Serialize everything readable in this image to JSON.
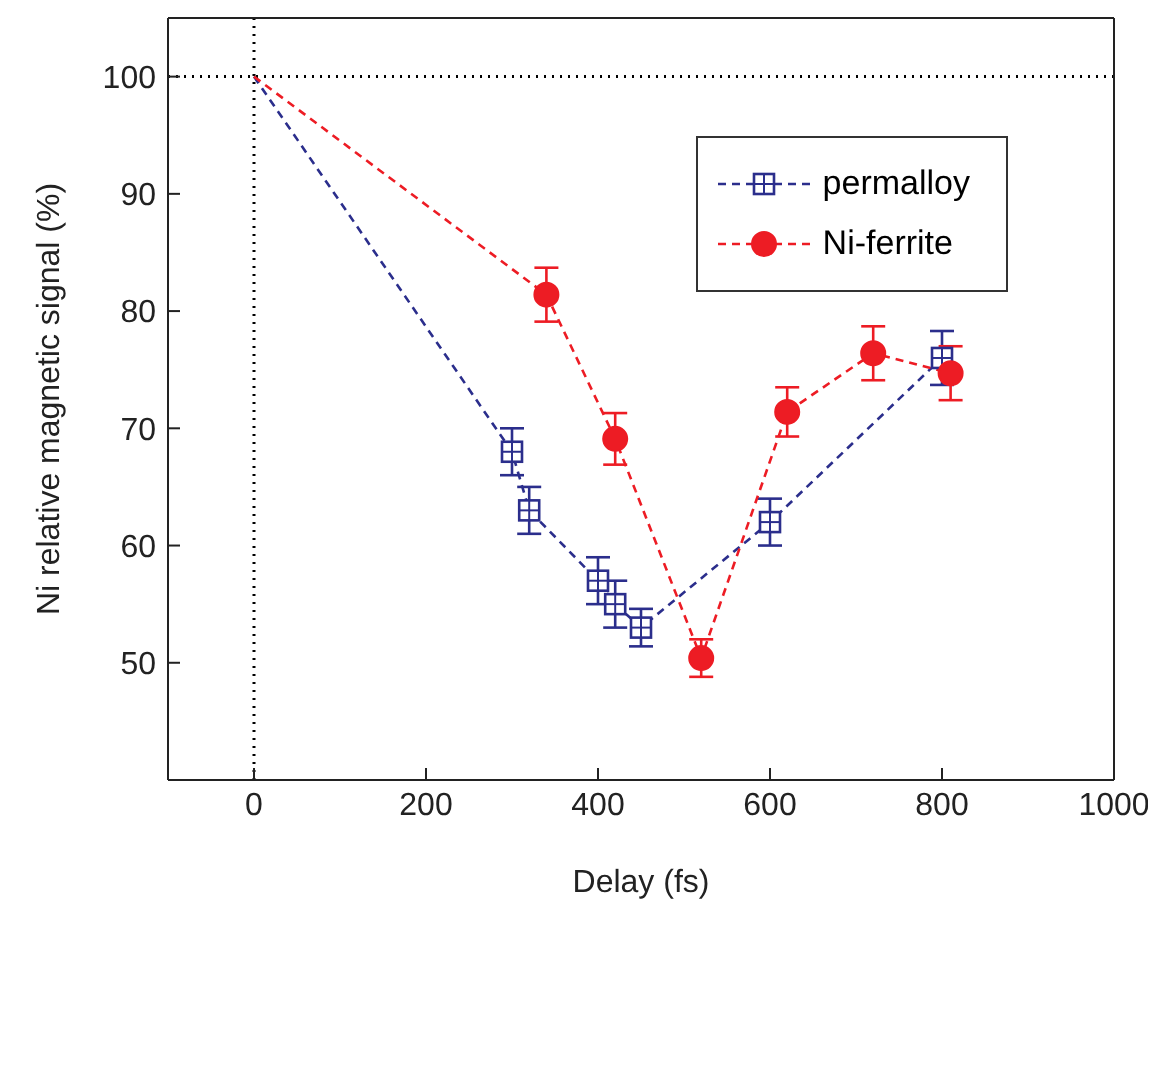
{
  "chart_data": {
    "type": "line",
    "xlabel": "Delay (fs)",
    "ylabel": "Ni relative magnetic signal (%)",
    "xlim": [
      -100,
      1000
    ],
    "xticks": [
      0,
      200,
      400,
      600,
      800,
      1000
    ],
    "ylim": [
      40,
      105
    ],
    "yticks": [
      50,
      60,
      70,
      80,
      90,
      100
    ],
    "legend": "top right",
    "line_style": "dashed",
    "ref_lines": [
      {
        "axis": "x",
        "value": 0,
        "line_style": "dotted",
        "color": "#000000"
      },
      {
        "axis": "y",
        "value": 100,
        "line_style": "dotted",
        "color": "#000000"
      }
    ],
    "series": [
      {
        "name": "permalloy",
        "color": "#2b2e8c",
        "marker": "square",
        "x": [
          0,
          300,
          320,
          400,
          420,
          450,
          600,
          800
        ],
        "values": [
          100,
          68,
          63,
          57,
          55,
          53,
          62,
          76
        ],
        "errors": [
          null,
          2,
          2,
          2,
          2,
          1.6,
          2,
          2.3
        ]
      },
      {
        "name": "Ni-ferrite",
        "color": "#ed1c24",
        "marker": "circle",
        "x": [
          0,
          340,
          420,
          520,
          620,
          720,
          810
        ],
        "values": [
          100,
          81.4,
          69.1,
          50.4,
          71.4,
          76.4,
          74.7
        ],
        "errors": [
          null,
          2.3,
          2.2,
          1.6,
          2.1,
          2.3,
          2.3
        ]
      }
    ]
  }
}
